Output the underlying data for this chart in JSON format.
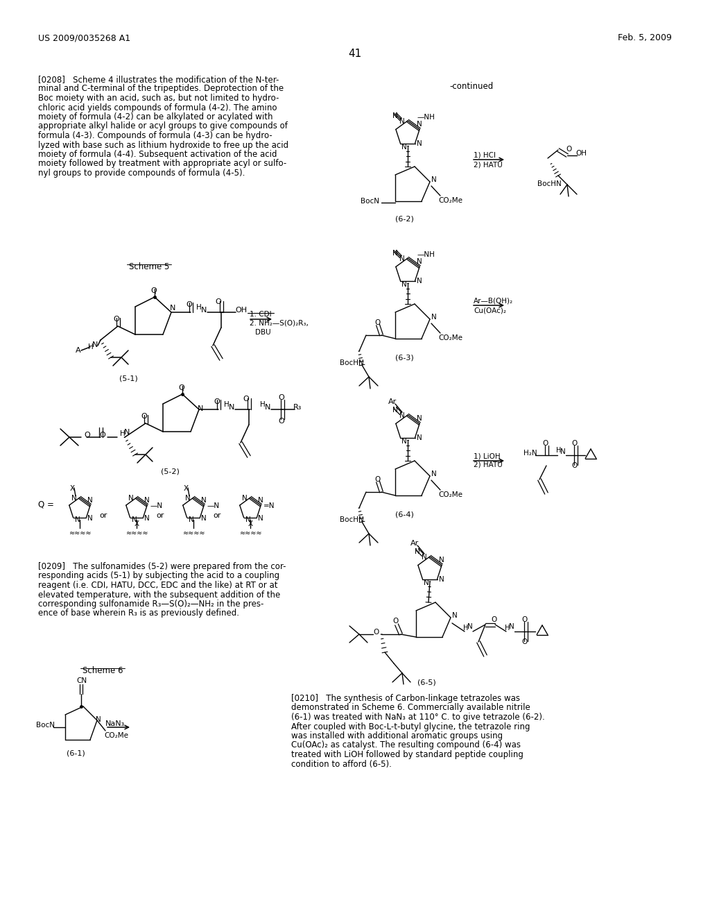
{
  "background_color": "#ffffff",
  "page_number": "41",
  "header_left": "US 2009/0035268 A1",
  "header_right": "Feb. 5, 2009",
  "body_text_left_lines": [
    "[0208]   Scheme 4 illustrates the modification of the N-ter-",
    "minal and C-terminal of the tripeptides. Deprotection of the",
    "Boc moiety with an acid, such as, but not limited to hydro-",
    "chloric acid yields compounds of formula (4-2). The amino",
    "moiety of formula (4-2) can be alkylated or acylated with",
    "appropriate alkyl halide or acyl groups to give compounds of",
    "formula (4-3). Compounds of formula (4-3) can be hydro-",
    "lyzed with base such as lithium hydroxide to free up the acid",
    "moiety of formula (4-4). Subsequent activation of the acid",
    "moiety followed by treatment with appropriate acyl or sulfo-",
    "nyl groups to provide compounds of formula (4-5)."
  ],
  "para0209_lines": [
    "[0209]   The sulfonamides (5-2) were prepared from the cor-",
    "responding acids (5-1) by subjecting the acid to a coupling",
    "reagent (i.e. CDI, HATU, DCC, EDC and the like) at RT or at",
    "elevated temperature, with the subsequent addition of the",
    "corresponding sulfonamide R₃—S(O)₂—NH₂ in the pres-",
    "ence of base wherein R₃ is as previously defined."
  ],
  "para0210_lines": [
    "[0210]   The synthesis of Carbon-linkage tetrazoles was",
    "demonstrated in Scheme 6. Commercially available nitrile",
    "(6-1) was treated with NaN₃ at 110° C. to give tetrazole (6-2).",
    "After coupled with Boc-L-t-butyl glycine, the tetrazole ring",
    "was installed with additional aromatic groups using",
    "Cu(OAc)₂ as catalyst. The resulting compound (6-4) was",
    "treated with LiOH followed by standard peptide coupling",
    "condition to afford (6-5)."
  ],
  "scheme5_label": "Scheme 5",
  "scheme6_label": "Scheme 6",
  "continued_label": "-continued"
}
